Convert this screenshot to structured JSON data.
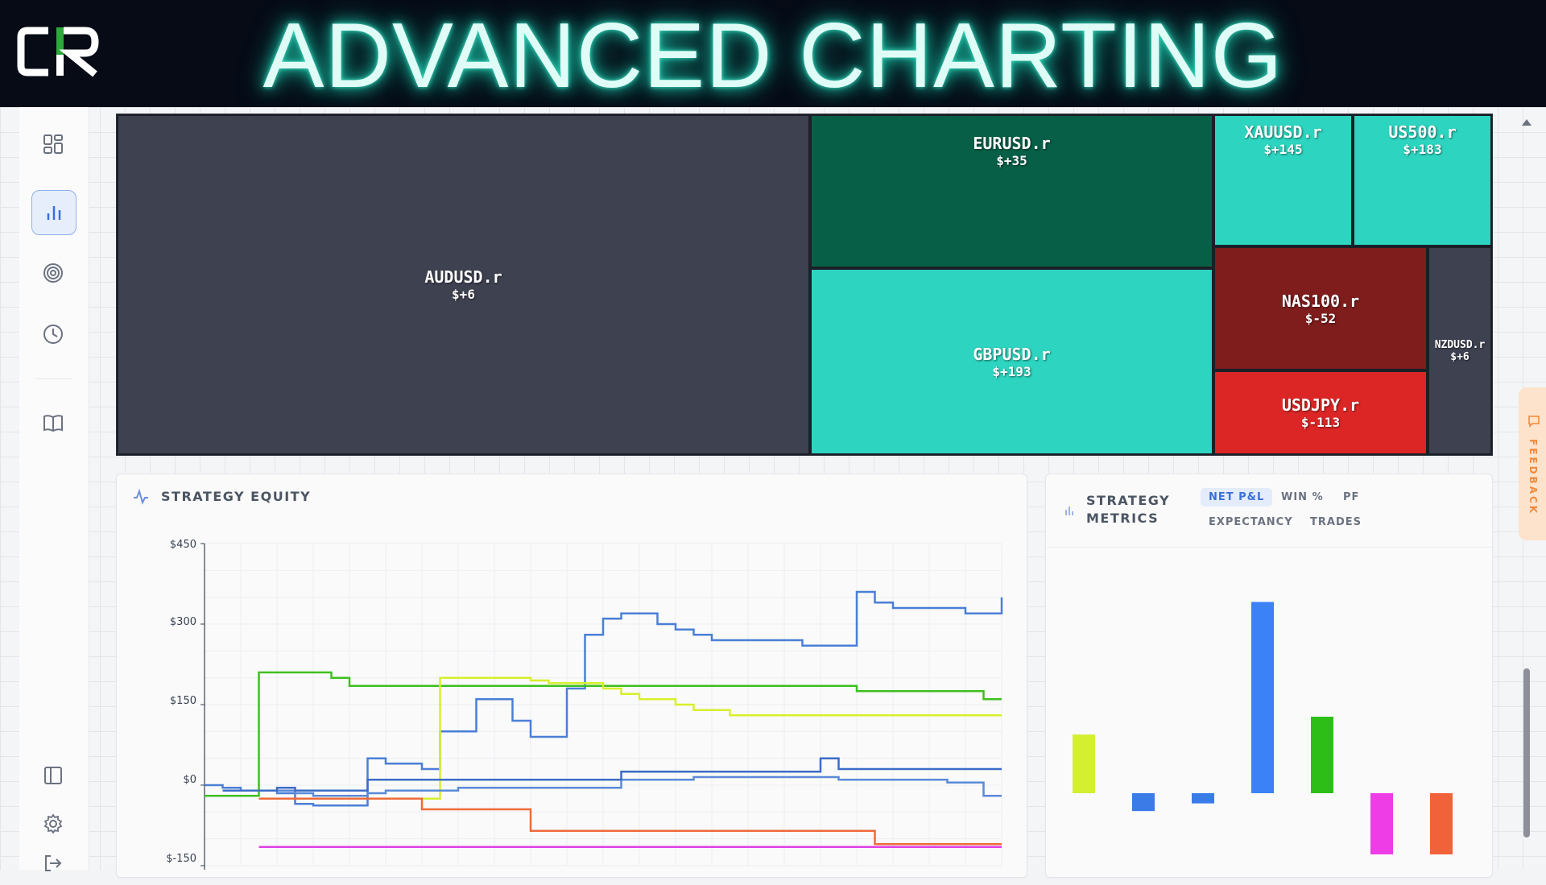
{
  "banner": {
    "title": "ADVANCED CHARTING",
    "logo_text": "CR"
  },
  "sidebar": {
    "items": [
      {
        "name": "dashboard",
        "icon": "grid-icon",
        "active": false
      },
      {
        "name": "charts",
        "icon": "bar-chart-icon",
        "active": true
      },
      {
        "name": "targets",
        "icon": "target-icon",
        "active": false
      },
      {
        "name": "history",
        "icon": "clock-icon",
        "active": false
      },
      {
        "name": "journal",
        "icon": "book-icon",
        "active": false
      }
    ],
    "bottom_items": [
      {
        "name": "toggle-panel",
        "icon": "panel-icon"
      },
      {
        "name": "settings",
        "icon": "gear-icon"
      },
      {
        "name": "logout",
        "icon": "logout-icon"
      }
    ]
  },
  "treemap": {
    "tiles": [
      {
        "symbol": "AUDUSD.r",
        "pnl": "$+6",
        "color": "#3e4150"
      },
      {
        "symbol": "EURUSD.r",
        "pnl": "$+35",
        "color": "#065f46"
      },
      {
        "symbol": "GBPUSD.r",
        "pnl": "$+193",
        "color": "#2dd4bf"
      },
      {
        "symbol": "XAUUSD.r",
        "pnl": "$+145",
        "color": "#2dd4bf"
      },
      {
        "symbol": "US500.r",
        "pnl": "$+183",
        "color": "#2dd4bf"
      },
      {
        "symbol": "NAS100.r",
        "pnl": "$-52",
        "color": "#7f1d1d"
      },
      {
        "symbol": "USDJPY.r",
        "pnl": "$-113",
        "color": "#dc2626"
      },
      {
        "symbol": "NZDUSD.r",
        "pnl": "$+6",
        "color": "#3e4150"
      }
    ]
  },
  "equity": {
    "title": "STRATEGY EQUITY",
    "y_ticks": [
      "$450",
      "$300",
      "$150",
      "$0",
      "$-150"
    ]
  },
  "metrics": {
    "title_line1": "STRATEGY",
    "title_line2": "METRICS",
    "tabs": [
      "NET P&L",
      "WIN %",
      "PF",
      "EXPECTANCY",
      "TRADES"
    ],
    "active_tab": "NET P&L"
  },
  "feedback": {
    "label": "FEEDBACK"
  },
  "chart_data": [
    {
      "type": "line",
      "title": "STRATEGY EQUITY",
      "ylim": [
        -150,
        450
      ],
      "grid": true,
      "series": [
        {
          "color": "#4a7fd6",
          "values": [
            0,
            -5,
            -10,
            -10,
            -15,
            -35,
            -38,
            -38,
            -38,
            50,
            40,
            40,
            30,
            100,
            100,
            160,
            160,
            120,
            90,
            90,
            180,
            280,
            310,
            320,
            320,
            300,
            290,
            280,
            270,
            270,
            270,
            270,
            270,
            260,
            260,
            260,
            360,
            340,
            330,
            330,
            330,
            330,
            320,
            320,
            350
          ]
        },
        {
          "color": "#3fbf1f",
          "values": [
            -20,
            -20,
            -20,
            210,
            210,
            210,
            210,
            200,
            185,
            185,
            185,
            185,
            185,
            185,
            185,
            185,
            185,
            185,
            185,
            185,
            185,
            185,
            185,
            185,
            185,
            185,
            185,
            185,
            185,
            185,
            185,
            185,
            185,
            185,
            185,
            185,
            175,
            175,
            175,
            175,
            175,
            175,
            175,
            160,
            160
          ]
        },
        {
          "color": "#d8ef2c",
          "values": [
            null,
            null,
            null,
            null,
            null,
            null,
            null,
            null,
            null,
            null,
            -25,
            -25,
            -25,
            200,
            200,
            200,
            200,
            200,
            195,
            190,
            190,
            190,
            180,
            170,
            160,
            160,
            150,
            140,
            140,
            130,
            130,
            130,
            130,
            130,
            130,
            130,
            130,
            130,
            130,
            130,
            130,
            130,
            130,
            130,
            130
          ]
        },
        {
          "color": "#5a8ad8",
          "values": [
            null,
            -10,
            -10,
            -10,
            -10,
            -15,
            -20,
            -20,
            -20,
            -15,
            -10,
            -10,
            -10,
            -10,
            -5,
            -5,
            -5,
            -5,
            -5,
            -5,
            -5,
            -5,
            -5,
            10,
            10,
            10,
            10,
            15,
            15,
            15,
            15,
            15,
            15,
            15,
            15,
            10,
            10,
            10,
            10,
            10,
            10,
            5,
            5,
            -20,
            -20
          ]
        },
        {
          "color": "#3c6cc6",
          "values": [
            null,
            -10,
            -10,
            -10,
            -5,
            -10,
            -10,
            -10,
            -10,
            10,
            10,
            10,
            10,
            10,
            10,
            10,
            10,
            10,
            10,
            10,
            10,
            10,
            10,
            25,
            25,
            25,
            25,
            25,
            25,
            25,
            25,
            25,
            25,
            25,
            50,
            30,
            30,
            30,
            30,
            30,
            30,
            30,
            30,
            30,
            30
          ]
        },
        {
          "color": "#ee6b3b",
          "values": [
            null,
            null,
            null,
            -25,
            -25,
            -25,
            -25,
            -25,
            -25,
            -25,
            -25,
            -25,
            -45,
            -45,
            -45,
            -45,
            -45,
            -45,
            -85,
            -85,
            -85,
            -85,
            -85,
            -85,
            -85,
            -85,
            -85,
            -85,
            -85,
            -85,
            -85,
            -85,
            -85,
            -85,
            -85,
            -85,
            -85,
            -110,
            -110,
            -110,
            -110,
            -110,
            -110,
            -110,
            -110
          ]
        },
        {
          "color": "#e041e6",
          "values": [
            null,
            null,
            null,
            -115,
            -115,
            -115,
            -115,
            -115,
            -115,
            -115,
            -115,
            -115,
            -115,
            -115,
            -115,
            -115,
            -115,
            -115,
            -115,
            -115,
            -115,
            -115,
            -115,
            -115,
            -115,
            -115,
            -115,
            -115,
            -115,
            -115,
            -115,
            -115,
            -115,
            -115,
            -115,
            -115,
            -115,
            -115,
            -115,
            -115,
            -115,
            -115,
            -115,
            -115,
            -115
          ]
        }
      ]
    },
    {
      "type": "bar",
      "title": "STRATEGY METRICS",
      "ylim": [
        -150,
        450
      ],
      "values": [
        115,
        -35,
        -20,
        375,
        150,
        -120,
        -120
      ],
      "colors": [
        "#d4ef2f",
        "#3b7be8",
        "#3b7be8",
        "#3b82f6",
        "#2dbf17",
        "#ee3de6",
        "#f2623a"
      ]
    }
  ]
}
